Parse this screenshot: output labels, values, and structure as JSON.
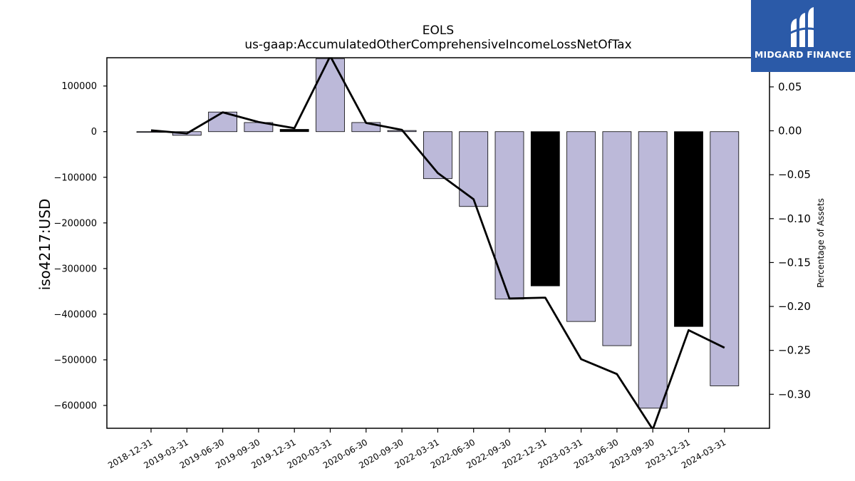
{
  "chart_data": {
    "type": "bar",
    "title": "EOLS",
    "subtitle": "us-gaap:AccumulatedOtherComprehensiveIncomeLossNetOfTax",
    "ylabel": "iso4217:USD",
    "y2label": "Percentage of Assets",
    "categories": [
      "2018-12-31",
      "2019-03-31",
      "2019-06-30",
      "2019-09-30",
      "2019-12-31",
      "2020-03-31",
      "2020-06-30",
      "2020-09-30",
      "2022-03-31",
      "2022-06-30",
      "2022-09-30",
      "2022-12-31",
      "2023-03-31",
      "2023-06-30",
      "2023-09-30",
      "2023-12-31",
      "2024-03-31"
    ],
    "series": [
      {
        "values": [
          -1000,
          -8000,
          43000,
          20000,
          5000,
          160000,
          20000,
          2500,
          -103000,
          -164000,
          -367000,
          -338000,
          -416000,
          -469000,
          -606000,
          -427000,
          -557000
        ],
        "bar_colors": [
          "#bcb9d9",
          "#bcb9d9",
          "#bcb9d9",
          "#bcb9d9",
          "#000000",
          "#bcb9d9",
          "#bcb9d9",
          "#bcb9d9",
          "#bcb9d9",
          "#bcb9d9",
          "#bcb9d9",
          "#000000",
          "#bcb9d9",
          "#bcb9d9",
          "#bcb9d9",
          "#000000",
          "#bcb9d9"
        ]
      },
      {
        "axis": "right",
        "values": [
          0.0005,
          -0.003,
          0.021,
          0.01,
          0.003,
          0.085,
          0.009,
          0.001,
          -0.048,
          -0.078,
          -0.191,
          -0.19,
          -0.26,
          -0.277,
          -0.34,
          -0.227,
          -0.247
        ],
        "color": "#000000"
      }
    ],
    "ylim": [
      -650000,
      162000
    ],
    "y2lim": [
      -0.3387,
      0.0832
    ],
    "yticks": [
      100000,
      0,
      -100000,
      -200000,
      -300000,
      -400000,
      -500000,
      -600000
    ],
    "ytick_labels": [
      "100000",
      "0",
      "−100000",
      "−200000",
      "−300000",
      "−400000",
      "−500000",
      "−600000"
    ],
    "y2ticks": [
      0.05,
      0.0,
      -0.05,
      -0.1,
      -0.15,
      -0.2,
      -0.25,
      -0.3
    ],
    "y2tick_labels": [
      "0.05",
      "0.00",
      "−0.05",
      "−0.10",
      "−0.15",
      "−0.20",
      "−0.25",
      "−0.30"
    ],
    "grid": false
  },
  "logo": {
    "text": "MIDGARD FINANCE",
    "background": "#2b5aa8"
  }
}
